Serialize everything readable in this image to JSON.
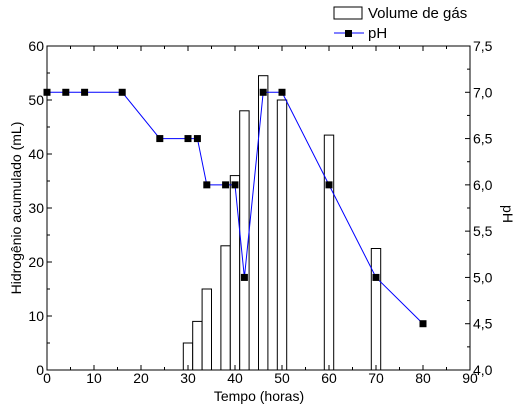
{
  "chart_data": {
    "type": "bar",
    "title": "",
    "xlabel": "Tempo (horas)",
    "ylabel": "Hidrogênio acumulado (mL)",
    "y2label": "pH",
    "xlim": [
      0,
      90
    ],
    "ylim": [
      0,
      60
    ],
    "y2lim": [
      4.0,
      7.5
    ],
    "x_ticks": [
      "0",
      "10",
      "20",
      "30",
      "40",
      "50",
      "60",
      "70",
      "80",
      "90"
    ],
    "y_ticks": [
      "0",
      "10",
      "20",
      "30",
      "40",
      "50",
      "60"
    ],
    "y2_ticks": [
      "4,0",
      "4,5",
      "5,0",
      "5,5",
      "6,0",
      "6,5",
      "7,0",
      "7,5"
    ],
    "grid": false,
    "legend_position": "top-right",
    "series": [
      {
        "name": "Volume de gás",
        "type": "bar",
        "axis": "left",
        "bar_width": 2,
        "fill": "#ffffff",
        "stroke": "#000000",
        "x": [
          30,
          32,
          34,
          38,
          40,
          42,
          46,
          50,
          60,
          70
        ],
        "values": [
          5,
          9,
          15,
          23,
          36,
          48,
          54.5,
          50,
          43.5,
          22.5
        ]
      },
      {
        "name": "pH",
        "type": "line",
        "axis": "right",
        "color": "#0000ff",
        "marker_color": "#000000",
        "x": [
          0,
          4,
          8,
          16,
          24,
          30,
          32,
          34,
          38,
          40,
          42,
          46,
          50,
          60,
          70,
          80
        ],
        "values": [
          7.0,
          7.0,
          7.0,
          7.0,
          6.5,
          6.5,
          6.5,
          6.0,
          6.0,
          6.0,
          5.0,
          7.0,
          7.0,
          6.0,
          5.0,
          4.5
        ]
      }
    ]
  }
}
